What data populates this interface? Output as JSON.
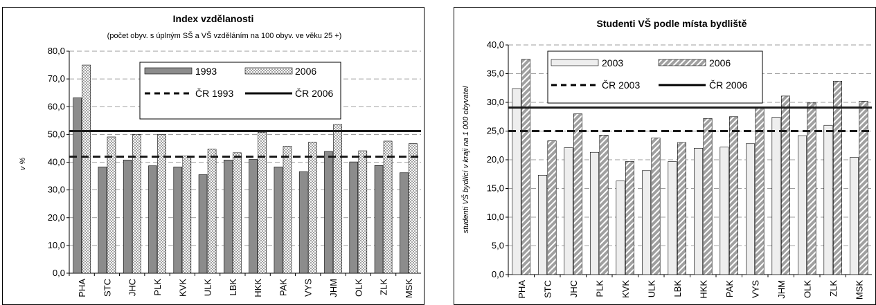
{
  "chart_data": [
    {
      "type": "bar",
      "title": "Index vzdělanosti",
      "subtitle": "(počet obyv. s úplným SŠ a VŠ vzděláním na 100 obyv. ve věku 25 +)",
      "xlabel": "",
      "ylabel": "v %",
      "ylim": [
        0,
        80
      ],
      "yticks": [
        "0,0",
        "10,0",
        "20,0",
        "30,0",
        "40,0",
        "50,0",
        "60,0",
        "70,0",
        "80,0"
      ],
      "ytick_values": [
        0,
        10,
        20,
        30,
        40,
        50,
        60,
        70,
        80
      ],
      "categories": [
        "PHA",
        "STC",
        "JHC",
        "PLK",
        "KVK",
        "ULK",
        "LBK",
        "HKK",
        "PAK",
        "VYS",
        "JHM",
        "OLK",
        "ZLK",
        "MSK"
      ],
      "series": [
        {
          "name": "1993",
          "values": [
            63.2,
            38.3,
            40.8,
            38.7,
            38.3,
            35.5,
            40.8,
            41.0,
            38.3,
            36.6,
            43.9,
            40.1,
            38.8,
            36.2
          ],
          "color": "#8c8c8c",
          "pattern": "solid"
        },
        {
          "name": "2006",
          "values": [
            75.0,
            49.1,
            49.9,
            50.0,
            42.2,
            44.7,
            43.4,
            50.8,
            45.7,
            47.2,
            53.6,
            44.1,
            47.6,
            46.7
          ],
          "color": "#d9d9d9",
          "pattern": "dots"
        }
      ],
      "reference_lines": [
        {
          "name": "ČR 1993",
          "value": 42.0,
          "style": "dashed"
        },
        {
          "name": "ČR 2006",
          "value": 51.2,
          "style": "solid"
        }
      ],
      "grid": true,
      "legend": "top-right"
    },
    {
      "type": "bar",
      "title": "Studenti VŠ podle místa bydliště",
      "xlabel": "",
      "ylabel": "studenti VŠ bydlící v kraji na 1 000 obyvatel",
      "ylim": [
        0,
        40
      ],
      "yticks": [
        "0,0",
        "5,0",
        "10,0",
        "15,0",
        "20,0",
        "25,0",
        "30,0",
        "35,0",
        "40,0"
      ],
      "ytick_values": [
        0,
        5,
        10,
        15,
        20,
        25,
        30,
        35,
        40
      ],
      "categories": [
        "PHA",
        "STC",
        "JHC",
        "PLK",
        "KVK",
        "ULK",
        "LBK",
        "HKK",
        "PAK",
        "VYS",
        "JHM",
        "OLK",
        "ZLK",
        "MSK"
      ],
      "series": [
        {
          "name": "2003",
          "values": [
            32.4,
            17.3,
            22.1,
            21.3,
            16.3,
            18.1,
            19.7,
            22.0,
            22.2,
            22.8,
            27.4,
            24.2,
            26.0,
            20.4
          ],
          "color": "#eeeeee",
          "pattern": "solid"
        },
        {
          "name": "2006",
          "values": [
            37.5,
            23.3,
            28.0,
            24.3,
            19.7,
            23.8,
            23.0,
            27.2,
            27.5,
            29.2,
            31.1,
            29.9,
            33.7,
            30.2
          ],
          "color": "#999999",
          "pattern": "hatch"
        }
      ],
      "reference_lines": [
        {
          "name": "ČR 2003",
          "value": 25.0,
          "style": "dashed"
        },
        {
          "name": "ČR 2006",
          "value": 29.1,
          "style": "solid"
        }
      ],
      "grid": true,
      "legend": "top-center"
    }
  ]
}
